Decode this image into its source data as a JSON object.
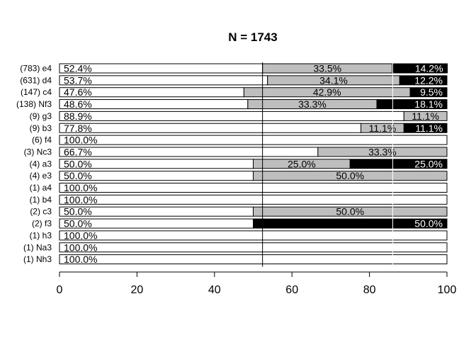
{
  "chart_data": {
    "type": "bar",
    "title": "N =  1743",
    "xlim": [
      0,
      100
    ],
    "xticks": [
      "0",
      "20",
      "40",
      "60",
      "80",
      "100"
    ],
    "colors": {
      "first": "#ffffff",
      "second": "#bebebe",
      "third": "#000000",
      "outline": "#000000"
    },
    "rows": [
      {
        "label": "(783) e4",
        "segments": [
          52.4,
          33.5,
          14.2
        ],
        "texts": [
          "52.4%",
          "33.5%",
          "14.2%"
        ]
      },
      {
        "label": "(631) d4",
        "segments": [
          53.7,
          34.1,
          12.2
        ],
        "texts": [
          "53.7%",
          "34.1%",
          "12.2%"
        ]
      },
      {
        "label": "(147) c4",
        "segments": [
          47.6,
          42.9,
          9.5
        ],
        "texts": [
          "47.6%",
          "42.9%",
          "9.5%"
        ]
      },
      {
        "label": "(138) Nf3",
        "segments": [
          48.6,
          33.3,
          18.1
        ],
        "texts": [
          "48.6%",
          "33.3%",
          "18.1%"
        ]
      },
      {
        "label": "(9) g3",
        "segments": [
          88.9,
          11.1,
          0
        ],
        "texts": [
          "88.9%",
          "11.1%",
          ""
        ]
      },
      {
        "label": "(9) b3",
        "segments": [
          77.8,
          11.1,
          11.1
        ],
        "texts": [
          "77.8%",
          "11.1%",
          "11.1%"
        ]
      },
      {
        "label": "(6) f4",
        "segments": [
          100,
          0,
          0
        ],
        "texts": [
          "100.0%",
          "",
          ""
        ]
      },
      {
        "label": "(3) Nc3",
        "segments": [
          66.7,
          33.3,
          0
        ],
        "texts": [
          "66.7%",
          "33.3%",
          ""
        ]
      },
      {
        "label": "(4) a3",
        "segments": [
          50,
          25,
          25
        ],
        "texts": [
          "50.0%",
          "25.0%",
          "25.0%"
        ]
      },
      {
        "label": "(4) e3",
        "segments": [
          50,
          50,
          0
        ],
        "texts": [
          "50.0%",
          "50.0%",
          ""
        ]
      },
      {
        "label": "(1) a4",
        "segments": [
          100,
          0,
          0
        ],
        "texts": [
          "100.0%",
          "",
          ""
        ]
      },
      {
        "label": "(1) b4",
        "segments": [
          100,
          0,
          0
        ],
        "texts": [
          "100.0%",
          "",
          ""
        ]
      },
      {
        "label": "(2) c3",
        "segments": [
          50,
          50,
          0
        ],
        "texts": [
          "50.0%",
          "50.0%",
          ""
        ]
      },
      {
        "label": "(2) f3",
        "segments": [
          50,
          0,
          50
        ],
        "texts": [
          "50.0%",
          "",
          "50.0%"
        ]
      },
      {
        "label": "(1) h3",
        "segments": [
          100,
          0,
          0
        ],
        "texts": [
          "100.0%",
          "",
          ""
        ]
      },
      {
        "label": "(1) Na3",
        "segments": [
          100,
          0,
          0
        ],
        "texts": [
          "100.0%",
          "",
          ""
        ]
      },
      {
        "label": "(1) Nh3",
        "segments": [
          100,
          0,
          0
        ],
        "texts": [
          "100.0%",
          "",
          ""
        ]
      }
    ],
    "reference_lines": [
      52.4,
      86.0
    ]
  }
}
